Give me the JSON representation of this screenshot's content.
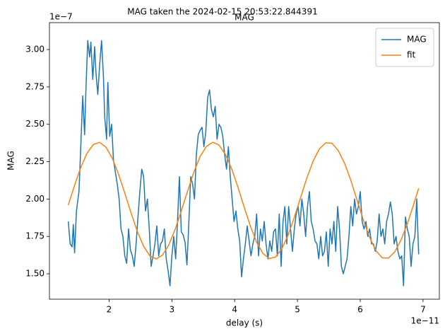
{
  "chart_data": {
    "type": "line",
    "suptitle": "MAG taken the 2024-02-15 20:53:22.844391",
    "title": "MAG",
    "x_label": "delay (s)",
    "y_label": "MAG",
    "x_offset_label": "1e−11",
    "y_offset_label": "1e−7",
    "xlim": [
      1.05,
      7.26
    ],
    "ylim": [
      1.33,
      3.18
    ],
    "xticks": [
      2,
      3,
      4,
      5,
      6,
      7
    ],
    "yticks": [
      {
        "value": 1.5,
        "label": "1.50"
      },
      {
        "value": 1.75,
        "label": "1.75"
      },
      {
        "value": 2.0,
        "label": "2.00"
      },
      {
        "value": 2.25,
        "label": "2.25"
      },
      {
        "value": 2.5,
        "label": "2.50"
      },
      {
        "value": 2.75,
        "label": "2.75"
      },
      {
        "value": 3.0,
        "label": "3.00"
      }
    ],
    "grid": false,
    "legend_loc": "upper right",
    "series": [
      {
        "name": "MAG",
        "color": "#1f77b4",
        "x": [
          1.35,
          1.38,
          1.41,
          1.43,
          1.45,
          1.48,
          1.52,
          1.55,
          1.58,
          1.61,
          1.63,
          1.66,
          1.69,
          1.71,
          1.74,
          1.77,
          1.79,
          1.82,
          1.85,
          1.88,
          1.91,
          1.93,
          1.96,
          1.98,
          2.01,
          2.04,
          2.07,
          2.1,
          2.13,
          2.16,
          2.19,
          2.22,
          2.25,
          2.28,
          2.31,
          2.34,
          2.37,
          2.4,
          2.43,
          2.46,
          2.49,
          2.52,
          2.55,
          2.58,
          2.61,
          2.64,
          2.67,
          2.7,
          2.73,
          2.76,
          2.79,
          2.82,
          2.85,
          2.88,
          2.91,
          2.94,
          2.97,
          3.0,
          3.03,
          3.06,
          3.09,
          3.12,
          3.15,
          3.18,
          3.21,
          3.24,
          3.27,
          3.3,
          3.33,
          3.36,
          3.39,
          3.42,
          3.45,
          3.48,
          3.51,
          3.54,
          3.57,
          3.6,
          3.63,
          3.66,
          3.69,
          3.72,
          3.75,
          3.78,
          3.81,
          3.84,
          3.87,
          3.9,
          3.93,
          3.96,
          3.99,
          4.02,
          4.05,
          4.08,
          4.11,
          4.14,
          4.17,
          4.2,
          4.23,
          4.26,
          4.29,
          4.32,
          4.35,
          4.38,
          4.41,
          4.44,
          4.47,
          4.5,
          4.53,
          4.56,
          4.59,
          4.62,
          4.65,
          4.68,
          4.71,
          4.74,
          4.77,
          4.8,
          4.83,
          4.86,
          4.89,
          4.92,
          4.95,
          4.98,
          5.01,
          5.04,
          5.07,
          5.1,
          5.13,
          5.16,
          5.19,
          5.22,
          5.25,
          5.28,
          5.31,
          5.34,
          5.37,
          5.4,
          5.43,
          5.46,
          5.49,
          5.52,
          5.55,
          5.58,
          5.61,
          5.64,
          5.67,
          5.7,
          5.73,
          5.76,
          5.79,
          5.82,
          5.85,
          5.88,
          5.91,
          5.94,
          5.97,
          6.0,
          6.03,
          6.06,
          6.09,
          6.12,
          6.15,
          6.18,
          6.21,
          6.24,
          6.27,
          6.3,
          6.33,
          6.36,
          6.39,
          6.42,
          6.45,
          6.48,
          6.51,
          6.54,
          6.57,
          6.6,
          6.63,
          6.66,
          6.69,
          6.72,
          6.75,
          6.78,
          6.81,
          6.84,
          6.87,
          6.9,
          6.93
        ],
        "values": [
          1.85,
          1.7,
          1.68,
          1.83,
          1.64,
          1.92,
          2.05,
          2.36,
          2.69,
          2.43,
          2.72,
          3.06,
          2.95,
          3.05,
          2.8,
          3.02,
          2.85,
          2.7,
          2.9,
          3.06,
          2.82,
          2.55,
          2.4,
          2.78,
          2.42,
          2.5,
          2.26,
          2.18,
          2.1,
          2.0,
          1.8,
          1.75,
          1.62,
          1.57,
          1.8,
          1.66,
          1.62,
          1.55,
          1.7,
          1.88,
          2.05,
          2.2,
          2.15,
          1.92,
          2.0,
          1.8,
          1.55,
          1.62,
          1.7,
          1.82,
          1.62,
          1.7,
          1.72,
          1.8,
          1.6,
          1.52,
          1.42,
          1.62,
          1.75,
          1.6,
          1.85,
          2.15,
          1.78,
          1.76,
          1.71,
          1.56,
          1.84,
          2.15,
          2.1,
          2.0,
          2.3,
          2.43,
          2.46,
          2.48,
          2.35,
          2.45,
          2.68,
          2.73,
          2.6,
          2.55,
          2.62,
          2.4,
          2.5,
          2.48,
          2.42,
          2.3,
          2.2,
          2.35,
          2.15,
          2.0,
          1.85,
          1.92,
          1.8,
          1.72,
          1.48,
          1.6,
          1.7,
          1.82,
          1.72,
          1.62,
          1.7,
          1.75,
          1.9,
          1.62,
          1.8,
          1.72,
          1.85,
          1.7,
          1.6,
          1.72,
          1.65,
          1.78,
          1.8,
          1.62,
          1.9,
          1.55,
          1.85,
          1.95,
          1.7,
          1.95,
          1.8,
          1.65,
          1.8,
          1.9,
          1.95,
          1.82,
          2.0,
          1.9,
          1.75,
          1.95,
          2.05,
          1.85,
          1.8,
          1.72,
          1.7,
          1.6,
          1.75,
          1.62,
          1.65,
          1.78,
          1.55,
          1.8,
          1.7,
          1.85,
          1.65,
          1.95,
          1.8,
          1.55,
          1.5,
          1.55,
          1.6,
          1.75,
          1.95,
          1.82,
          2.0,
          1.9,
          1.95,
          2.05,
          1.85,
          1.8,
          1.85,
          1.75,
          1.8,
          1.7,
          1.7,
          1.65,
          1.72,
          1.9,
          1.75,
          1.8,
          1.7,
          1.85,
          1.9,
          1.98,
          1.9,
          1.7,
          1.75,
          1.65,
          1.6,
          1.62,
          1.42,
          1.88,
          1.8,
          1.75,
          1.55,
          1.7,
          1.75,
          2.0,
          1.63
        ]
      },
      {
        "name": "fit",
        "color": "#ff7f0e",
        "x": [
          1.35,
          1.45,
          1.55,
          1.65,
          1.75,
          1.85,
          1.95,
          2.05,
          2.15,
          2.25,
          2.35,
          2.45,
          2.55,
          2.65,
          2.75,
          2.85,
          2.95,
          3.05,
          3.15,
          3.25,
          3.35,
          3.45,
          3.55,
          3.65,
          3.75,
          3.85,
          3.95,
          4.05,
          4.15,
          4.25,
          4.35,
          4.45,
          4.55,
          4.65,
          4.75,
          4.85,
          4.95,
          5.05,
          5.15,
          5.25,
          5.35,
          5.45,
          5.55,
          5.65,
          5.75,
          5.85,
          5.95,
          6.05,
          6.15,
          6.25,
          6.35,
          6.45,
          6.55,
          6.65,
          6.75,
          6.85,
          6.93
        ],
        "values": [
          1.96,
          2.092,
          2.213,
          2.308,
          2.365,
          2.379,
          2.347,
          2.274,
          2.167,
          2.04,
          1.907,
          1.783,
          1.684,
          1.62,
          1.6,
          1.625,
          1.692,
          1.795,
          1.92,
          2.053,
          2.18,
          2.285,
          2.352,
          2.38,
          2.361,
          2.301,
          2.204,
          2.082,
          1.948,
          1.819,
          1.711,
          1.636,
          1.602,
          1.612,
          1.667,
          1.757,
          1.877,
          2.01,
          2.141,
          2.254,
          2.336,
          2.376,
          2.373,
          2.324,
          2.24,
          2.125,
          1.992,
          1.86,
          1.743,
          1.655,
          1.607,
          1.605,
          1.647,
          1.727,
          1.835,
          1.963,
          2.071
        ]
      }
    ]
  }
}
